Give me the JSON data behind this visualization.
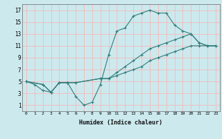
{
  "xlabel": "Humidex (Indice chaleur)",
  "bg_color": "#cce9ee",
  "grid_color": "#f5b8b8",
  "line_color": "#2e7d7a",
  "xlim": [
    -0.5,
    23.5
  ],
  "ylim": [
    0,
    18
  ],
  "xticks": [
    0,
    1,
    2,
    3,
    4,
    5,
    6,
    7,
    8,
    9,
    10,
    11,
    12,
    13,
    14,
    15,
    16,
    17,
    18,
    19,
    20,
    21,
    22,
    23
  ],
  "yticks": [
    1,
    3,
    5,
    7,
    9,
    11,
    13,
    15,
    17
  ],
  "line1_x": [
    0,
    1,
    2,
    3,
    4,
    5,
    6,
    7,
    8,
    9,
    10,
    11,
    12,
    13,
    14,
    15,
    16,
    17,
    18,
    19,
    20,
    21,
    22,
    23
  ],
  "line1_y": [
    5,
    4.5,
    3.5,
    3.2,
    4.8,
    4.8,
    2.5,
    1,
    1.5,
    4.5,
    9.5,
    13.5,
    14,
    16,
    16.5,
    17,
    16.5,
    16.5,
    14.5,
    13.5,
    13,
    11.5,
    11,
    11
  ],
  "line2_x": [
    0,
    2,
    3,
    4,
    5,
    6,
    9,
    10,
    11,
    12,
    13,
    14,
    15,
    16,
    17,
    18,
    19,
    20,
    21,
    22,
    23
  ],
  "line2_y": [
    5,
    4.5,
    3.2,
    4.8,
    4.8,
    4.8,
    5.5,
    5.5,
    6.5,
    7.5,
    8.5,
    9.5,
    10.5,
    11,
    11.5,
    12,
    12.5,
    13,
    11.5,
    11,
    11
  ],
  "line3_x": [
    0,
    2,
    3,
    4,
    5,
    6,
    9,
    10,
    11,
    12,
    13,
    14,
    15,
    16,
    17,
    18,
    19,
    20,
    21,
    22,
    23
  ],
  "line3_y": [
    5,
    4.5,
    3.2,
    4.8,
    4.8,
    4.8,
    5.5,
    5.5,
    6,
    6.5,
    7,
    7.5,
    8.5,
    9,
    9.5,
    10,
    10.5,
    11,
    11,
    11,
    11
  ]
}
